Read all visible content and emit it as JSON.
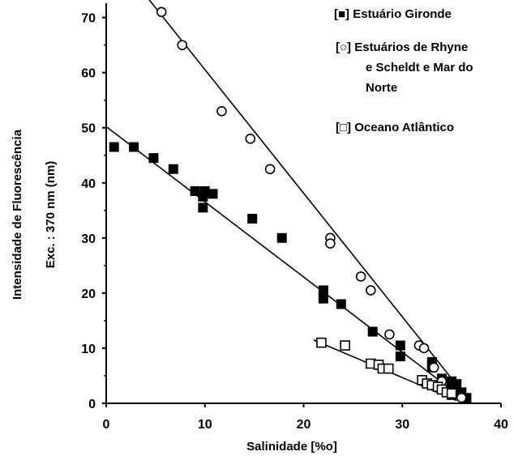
{
  "chart_data": {
    "type": "scatter",
    "xlabel": "Salinidade [%o]",
    "ylabel_line1": "Intensidade de Fluorescência",
    "ylabel_line2": "Exc. :  370 nm  (nm)",
    "xlim": [
      0,
      40
    ],
    "ylim": [
      0,
      72
    ],
    "xticks": [
      "0",
      "10",
      "20",
      "30",
      "40"
    ],
    "yticks": [
      "0",
      "10",
      "20",
      "30",
      "40",
      "50",
      "60",
      "70"
    ],
    "legend_position": "top-right",
    "series": [
      {
        "name": "[■] Estuário Gironde",
        "marker": "filled-square",
        "points": [
          [
            0.8,
            46.5
          ],
          [
            2.8,
            46.5
          ],
          [
            4.8,
            44.5
          ],
          [
            6.8,
            42.5
          ],
          [
            9.0,
            38.5
          ],
          [
            9.8,
            37.5
          ],
          [
            9.8,
            35.5
          ],
          [
            10.0,
            38.5
          ],
          [
            10.8,
            38.0
          ],
          [
            14.8,
            33.5
          ],
          [
            17.8,
            30.0
          ],
          [
            22.0,
            20.5
          ],
          [
            22.0,
            19.0
          ],
          [
            23.8,
            18.0
          ],
          [
            27.0,
            13.0
          ],
          [
            29.8,
            10.5
          ],
          [
            29.8,
            8.5
          ],
          [
            33.0,
            7.5
          ],
          [
            33.0,
            6.5
          ],
          [
            34.0,
            4.5
          ],
          [
            34.5,
            2.5
          ],
          [
            35.0,
            4.0
          ],
          [
            35.0,
            1.5
          ],
          [
            35.5,
            3.5
          ],
          [
            36.0,
            2.0
          ],
          [
            36.5,
            1.0
          ]
        ],
        "trend": [
          [
            0,
            50.2
          ],
          [
            36.8,
            0
          ]
        ]
      },
      {
        "name": "[○] Estuários de Rhyne e Scheldt e Mar do Norte",
        "marker": "open-circle",
        "points": [
          [
            5.6,
            71.0
          ],
          [
            7.7,
            65.0
          ],
          [
            11.7,
            53.0
          ],
          [
            14.6,
            48.0
          ],
          [
            16.6,
            42.5
          ],
          [
            22.7,
            30.0
          ],
          [
            22.7,
            29.0
          ],
          [
            25.8,
            23.0
          ],
          [
            26.8,
            20.5
          ],
          [
            28.7,
            12.5
          ],
          [
            31.7,
            10.5
          ],
          [
            32.2,
            10.0
          ],
          [
            33.2,
            6.5
          ],
          [
            34.0,
            4.0
          ],
          [
            35.0,
            2.0
          ],
          [
            36.0,
            1.0
          ]
        ],
        "trend": [
          [
            4.0,
            74.0
          ],
          [
            37.0,
            0
          ]
        ]
      },
      {
        "name": "[□] Oceano Atlântico",
        "marker": "open-square",
        "points": [
          [
            21.8,
            11.0
          ],
          [
            24.2,
            10.5
          ],
          [
            26.8,
            7.2
          ],
          [
            27.6,
            7.0
          ],
          [
            28.0,
            6.3
          ],
          [
            28.6,
            6.3
          ],
          [
            32.0,
            4.2
          ],
          [
            32.5,
            3.6
          ],
          [
            33.0,
            3.3
          ],
          [
            33.6,
            3.0
          ],
          [
            34.0,
            2.5
          ],
          [
            34.5,
            2.0
          ],
          [
            35.0,
            1.8
          ]
        ],
        "trend": [
          [
            21.0,
            11.5
          ],
          [
            35.5,
            0.5
          ]
        ]
      }
    ]
  }
}
